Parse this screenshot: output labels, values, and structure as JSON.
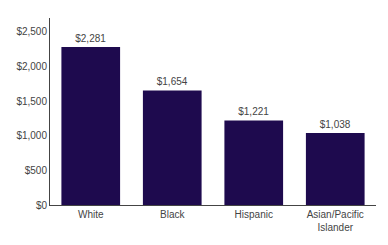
{
  "chart_data": {
    "type": "bar",
    "categories": [
      "White",
      "Black",
      "Hispanic",
      "Asian/Pacific\nIslander"
    ],
    "values": [
      2281,
      1654,
      1221,
      1038
    ],
    "value_labels": [
      "$2,281",
      "$1,654",
      "$1,221",
      "$1,038"
    ],
    "data_labels": true,
    "color": "#1e0a4e",
    "ylim": [
      0,
      2700
    ],
    "yticks": [
      {
        "value": 0,
        "label": "$0"
      },
      {
        "value": 500,
        "label": "$500"
      },
      {
        "value": 1000,
        "label": "$1,000"
      },
      {
        "value": 1500,
        "label": "$1,500"
      },
      {
        "value": 2000,
        "label": "$2,000"
      },
      {
        "value": 2500,
        "label": "$2,500"
      }
    ],
    "grid": false
  }
}
